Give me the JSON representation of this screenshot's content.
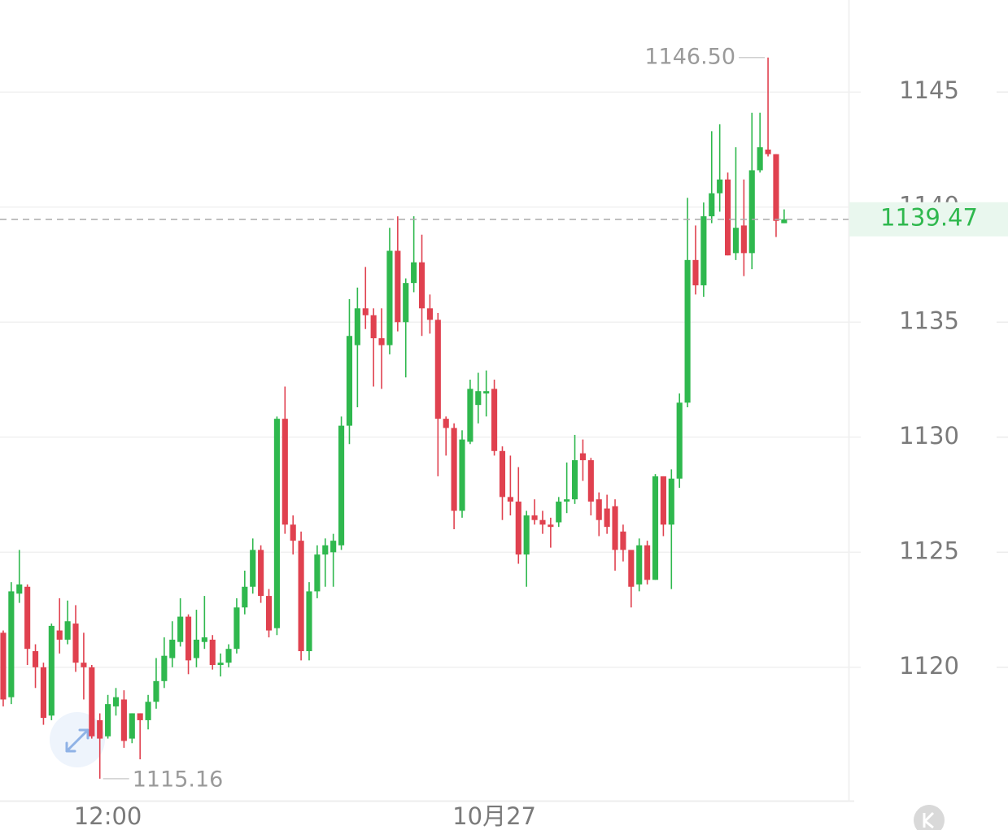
{
  "chart_data": {
    "type": "candlestick",
    "up_color": "#2fb84e",
    "down_color": "#e0414f",
    "ylim": [
      1114.2,
      1149
    ],
    "yticks": [
      1120,
      1125,
      1130,
      1135,
      1140,
      1145
    ],
    "grid": true,
    "xlim": [
      -0.4,
      105
    ],
    "xticks": [
      {
        "value": 13,
        "label": "12:00"
      },
      {
        "value": 61,
        "label": "10月27"
      }
    ],
    "open": [
      1121.5,
      1118.7,
      1123.2,
      1123.5,
      1120.7,
      1120.0,
      1117.9,
      1121.6,
      1121.2,
      1121.9,
      1120.2,
      1120.0,
      1117.7,
      1117.0,
      1118.3,
      1118.6,
      1116.9,
      1118.0,
      1117.7,
      1118.5,
      1119.4,
      1120.4,
      1121.1,
      1122.2,
      1120.4,
      1121.1,
      1121.2,
      1120.1,
      1120.2,
      1120.8,
      1122.6,
      1123.5,
      1125.1,
      1123.1,
      1121.7,
      1130.8,
      1126.2,
      1125.5,
      1120.7,
      1123.3,
      1124.9,
      1125.0,
      1125.3,
      1130.5,
      1134.0,
      1135.6,
      1135.3,
      1134.3,
      1134.0,
      1138.1,
      1135.0,
      1136.7,
      1137.6,
      1135.6,
      1135.1,
      1130.8,
      1130.4,
      1126.8,
      1129.8,
      1131.4,
      1131.9,
      1132.1,
      1129.4,
      1127.4,
      1127.2,
      1124.9,
      1126.6,
      1126.4,
      1126.2,
      1126.3,
      1127.2,
      1127.3,
      1129.3,
      1129.0,
      1127.3,
      1126.9,
      1127.0,
      1125.9,
      1125.1,
      1123.6,
      1125.3,
      1123.8,
      1128.3,
      1126.2,
      1128.2,
      1131.5,
      1137.7,
      1136.6,
      1139.6,
      1140.6,
      1141.2,
      1138.0,
      1139.2,
      1138.0,
      1141.6,
      1142.5,
      1142.3,
      1139.3
    ],
    "high": [
      1121.6,
      1123.7,
      1125.1,
      1123.6,
      1121.0,
      1120.2,
      1121.9,
      1123.0,
      1122.9,
      1122.7,
      1121.5,
      1120.1,
      1118.0,
      1118.8,
      1119.1,
      1119.0,
      1118.0,
      1118.0,
      1118.8,
      1120.4,
      1121.3,
      1122.0,
      1123.0,
      1122.3,
      1122.5,
      1123.1,
      1121.4,
      1120.6,
      1121.0,
      1123.0,
      1124.2,
      1125.6,
      1125.3,
      1123.4,
      1130.9,
      1132.2,
      1126.6,
      1125.9,
      1123.7,
      1125.3,
      1125.6,
      1125.8,
      1130.9,
      1136.0,
      1136.5,
      1137.4,
      1135.6,
      1135.6,
      1139.1,
      1139.6,
      1136.9,
      1139.6,
      1138.8,
      1136.2,
      1135.4,
      1130.9,
      1130.6,
      1130.3,
      1132.5,
      1132.8,
      1132.9,
      1132.5,
      1129.6,
      1129.2,
      1128.7,
      1126.8,
      1127.3,
      1126.8,
      1126.5,
      1127.4,
      1128.9,
      1130.1,
      1129.9,
      1129.1,
      1127.6,
      1127.5,
      1127.3,
      1126.2,
      1125.1,
      1125.6,
      1125.5,
      1128.4,
      1128.3,
      1128.6,
      1131.9,
      1140.4,
      1139.2,
      1140.2,
      1143.3,
      1143.6,
      1141.5,
      1142.6,
      1141.2,
      1144.1,
      1144.1,
      1146.5,
      1142.3,
      1139.9
    ],
    "low": [
      1118.3,
      1118.4,
      1122.8,
      1120.1,
      1119.1,
      1117.5,
      1117.7,
      1120.6,
      1121.0,
      1119.8,
      1118.6,
      1116.9,
      1115.16,
      1116.9,
      1117.9,
      1116.5,
      1116.7,
      1116.0,
      1117.3,
      1118.2,
      1119.1,
      1120.0,
      1120.9,
      1119.7,
      1120.0,
      1120.8,
      1119.9,
      1119.6,
      1120.0,
      1120.6,
      1122.3,
      1123.2,
      1122.8,
      1121.3,
      1121.4,
      1125.8,
      1124.9,
      1120.3,
      1120.3,
      1123.0,
      1123.5,
      1123.5,
      1125.1,
      1129.7,
      1131.3,
      1134.7,
      1132.2,
      1132.1,
      1133.6,
      1134.6,
      1132.6,
      1136.3,
      1134.4,
      1134.5,
      1128.3,
      1129.2,
      1126.0,
      1126.5,
      1129.7,
      1130.6,
      1130.9,
      1129.2,
      1126.4,
      1126.6,
      1124.5,
      1123.5,
      1126.2,
      1125.8,
      1125.2,
      1126.1,
      1126.7,
      1127.1,
      1128.1,
      1126.6,
      1125.7,
      1125.8,
      1124.2,
      1124.6,
      1122.6,
      1123.3,
      1123.6,
      1123.8,
      1125.7,
      1123.4,
      1127.8,
      1131.3,
      1136.2,
      1136.1,
      1139.3,
      1139.8,
      1137.9,
      1137.7,
      1137.0,
      1137.3,
      1141.5,
      1142.2,
      1138.7,
      1139.3
    ],
    "close": [
      1118.6,
      1123.3,
      1123.6,
      1120.8,
      1120.0,
      1117.8,
      1121.8,
      1121.2,
      1122.0,
      1120.2,
      1120.0,
      1117.0,
      1116.9,
      1118.4,
      1118.7,
      1116.8,
      1118.0,
      1117.7,
      1118.5,
      1119.4,
      1120.5,
      1121.2,
      1122.2,
      1120.3,
      1121.2,
      1121.3,
      1120.1,
      1120.2,
      1120.8,
      1122.6,
      1123.5,
      1125.1,
      1123.1,
      1121.6,
      1130.8,
      1126.2,
      1125.5,
      1120.7,
      1123.3,
      1124.9,
      1125.3,
      1125.5,
      1130.5,
      1134.4,
      1135.6,
      1135.3,
      1134.3,
      1134.0,
      1138.1,
      1135.0,
      1136.7,
      1137.6,
      1135.6,
      1135.1,
      1130.8,
      1130.4,
      1126.8,
      1129.9,
      1132.1,
      1132.0,
      1132.0,
      1129.4,
      1127.4,
      1127.2,
      1124.9,
      1126.6,
      1126.4,
      1126.2,
      1126.1,
      1127.2,
      1127.3,
      1129.0,
      1129.0,
      1127.2,
      1126.4,
      1126.1,
      1125.1,
      1125.1,
      1123.5,
      1125.3,
      1123.8,
      1128.3,
      1126.2,
      1128.2,
      1131.5,
      1137.7,
      1136.6,
      1139.6,
      1140.6,
      1141.2,
      1137.9,
      1139.1,
      1138.0,
      1141.6,
      1142.6,
      1142.3,
      1139.4,
      1139.47
    ],
    "annotations": [
      {
        "value": 1146.5,
        "label": "1146.50"
      },
      {
        "value": 1115.16,
        "label": "1115.16"
      }
    ],
    "last_price": 1139.47
  }
}
